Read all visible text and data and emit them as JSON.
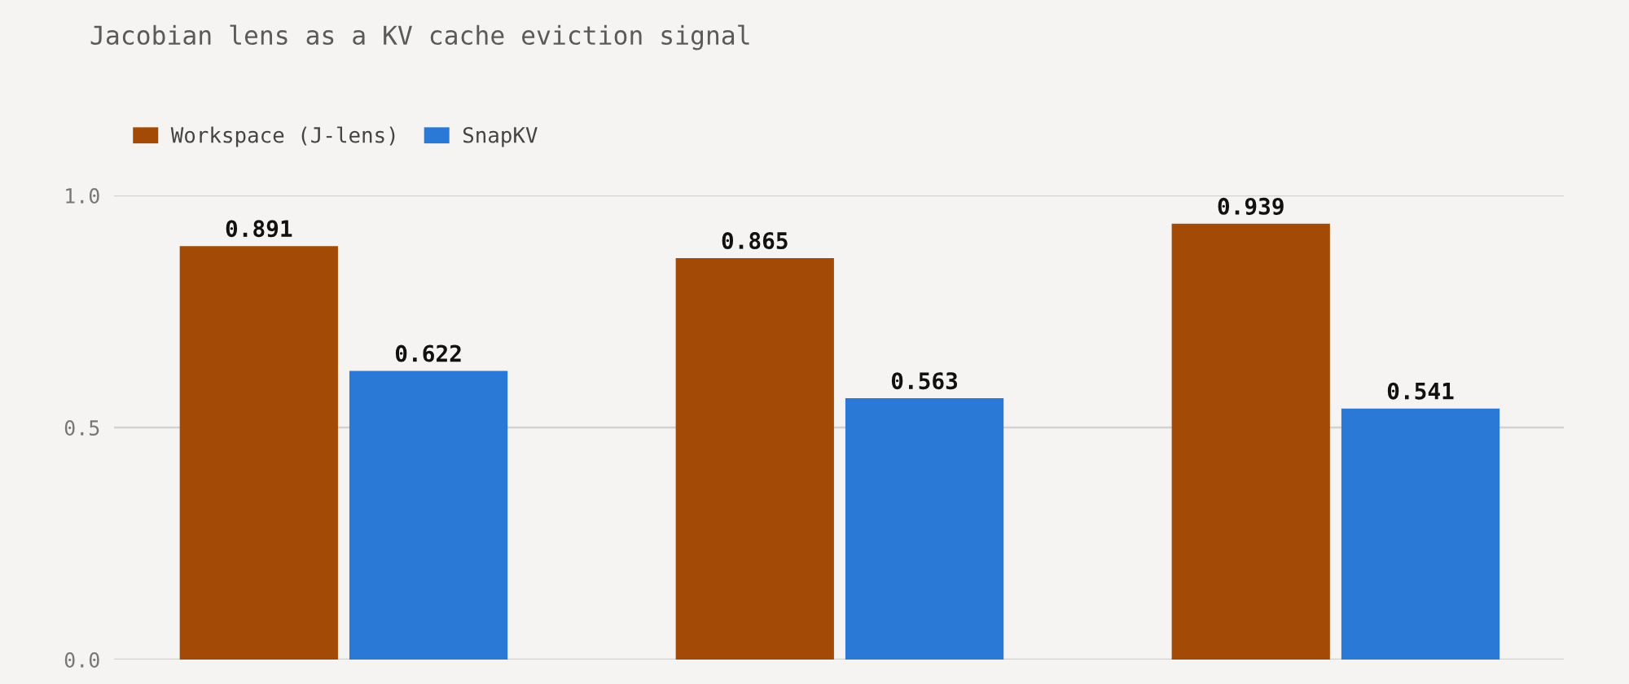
{
  "chart_data": {
    "type": "bar",
    "title": "Jacobian lens as a KV cache eviction signal",
    "categories": [
      null,
      null,
      null
    ],
    "series": [
      {
        "name": "Workspace (J-lens)",
        "color": "#a34a06",
        "values": [
          0.891,
          0.865,
          0.939
        ]
      },
      {
        "name": "SnapKV",
        "color": "#2b79d6",
        "values": [
          0.622,
          0.563,
          0.541
        ]
      }
    ],
    "ylim": [
      0,
      1
    ],
    "yticks": [
      {
        "value": 0,
        "label": "0.0"
      },
      {
        "value": 0.5,
        "label": "0.5"
      },
      {
        "value": 1,
        "label": "1.0"
      }
    ],
    "grid": "y",
    "legend": "top left",
    "data_labels": true,
    "tick_labels": "y"
  }
}
